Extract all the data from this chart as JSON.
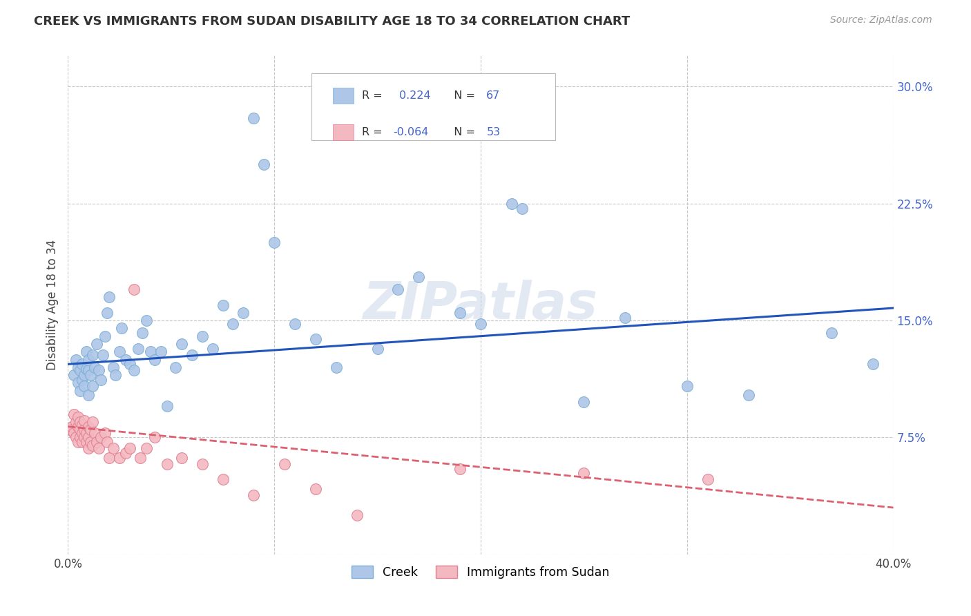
{
  "title": "CREEK VS IMMIGRANTS FROM SUDAN DISABILITY AGE 18 TO 34 CORRELATION CHART",
  "source": "Source: ZipAtlas.com",
  "ylabel": "Disability Age 18 to 34",
  "xlim": [
    0.0,
    0.4
  ],
  "ylim": [
    0.0,
    0.32
  ],
  "xticks": [
    0.0,
    0.1,
    0.2,
    0.3,
    0.4
  ],
  "xtick_labels": [
    "0.0%",
    "",
    "",
    "",
    "40.0%"
  ],
  "yticks": [
    0.0,
    0.075,
    0.15,
    0.225,
    0.3
  ],
  "ytick_labels_right": [
    "",
    "7.5%",
    "15.0%",
    "22.5%",
    "30.0%"
  ],
  "background_color": "#ffffff",
  "grid_color": "#c8c8c8",
  "watermark": "ZIPatlas",
  "creek_color": "#aec6e8",
  "creek_edge_color": "#7bafd4",
  "sudan_color": "#f4b8c1",
  "sudan_edge_color": "#e08090",
  "creek_line_color": "#2255bb",
  "sudan_line_color": "#dd6070",
  "label_color": "#4466cc",
  "creek_scatter_x": [
    0.003,
    0.004,
    0.005,
    0.005,
    0.006,
    0.006,
    0.007,
    0.007,
    0.008,
    0.008,
    0.009,
    0.009,
    0.01,
    0.01,
    0.01,
    0.011,
    0.012,
    0.012,
    0.013,
    0.014,
    0.015,
    0.016,
    0.017,
    0.018,
    0.019,
    0.02,
    0.022,
    0.023,
    0.025,
    0.026,
    0.028,
    0.03,
    0.032,
    0.034,
    0.036,
    0.038,
    0.04,
    0.042,
    0.045,
    0.048,
    0.052,
    0.055,
    0.06,
    0.065,
    0.07,
    0.075,
    0.08,
    0.085,
    0.09,
    0.095,
    0.1,
    0.11,
    0.12,
    0.13,
    0.15,
    0.16,
    0.17,
    0.19,
    0.2,
    0.215,
    0.22,
    0.25,
    0.27,
    0.3,
    0.33,
    0.37,
    0.39
  ],
  "creek_scatter_y": [
    0.115,
    0.125,
    0.11,
    0.12,
    0.105,
    0.118,
    0.112,
    0.122,
    0.108,
    0.115,
    0.119,
    0.13,
    0.102,
    0.118,
    0.125,
    0.115,
    0.108,
    0.128,
    0.12,
    0.135,
    0.118,
    0.112,
    0.128,
    0.14,
    0.155,
    0.165,
    0.12,
    0.115,
    0.13,
    0.145,
    0.125,
    0.122,
    0.118,
    0.132,
    0.142,
    0.15,
    0.13,
    0.125,
    0.13,
    0.095,
    0.12,
    0.135,
    0.128,
    0.14,
    0.132,
    0.16,
    0.148,
    0.155,
    0.28,
    0.25,
    0.2,
    0.148,
    0.138,
    0.12,
    0.132,
    0.17,
    0.178,
    0.155,
    0.148,
    0.225,
    0.222,
    0.098,
    0.152,
    0.108,
    0.102,
    0.142,
    0.122
  ],
  "sudan_scatter_x": [
    0.001,
    0.002,
    0.003,
    0.003,
    0.004,
    0.004,
    0.005,
    0.005,
    0.005,
    0.006,
    0.006,
    0.006,
    0.007,
    0.007,
    0.007,
    0.008,
    0.008,
    0.008,
    0.009,
    0.009,
    0.01,
    0.01,
    0.01,
    0.011,
    0.011,
    0.012,
    0.012,
    0.013,
    0.014,
    0.015,
    0.016,
    0.018,
    0.019,
    0.02,
    0.022,
    0.025,
    0.028,
    0.03,
    0.032,
    0.035,
    0.038,
    0.042,
    0.048,
    0.055,
    0.065,
    0.075,
    0.09,
    0.105,
    0.12,
    0.14,
    0.19,
    0.25,
    0.31
  ],
  "sudan_scatter_y": [
    0.08,
    0.082,
    0.078,
    0.09,
    0.075,
    0.085,
    0.072,
    0.082,
    0.088,
    0.075,
    0.08,
    0.085,
    0.072,
    0.078,
    0.083,
    0.075,
    0.08,
    0.086,
    0.072,
    0.078,
    0.068,
    0.075,
    0.082,
    0.072,
    0.08,
    0.07,
    0.085,
    0.078,
    0.072,
    0.068,
    0.075,
    0.078,
    0.072,
    0.062,
    0.068,
    0.062,
    0.065,
    0.068,
    0.17,
    0.062,
    0.068,
    0.075,
    0.058,
    0.062,
    0.058,
    0.048,
    0.038,
    0.058,
    0.042,
    0.025,
    0.055,
    0.052,
    0.048
  ]
}
